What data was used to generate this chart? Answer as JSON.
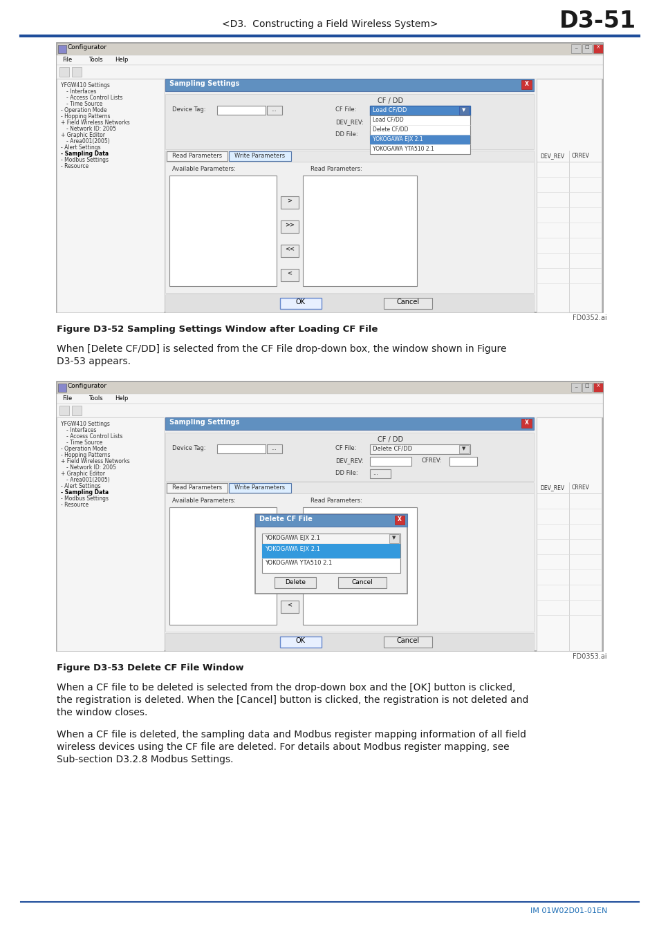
{
  "page_label": "D3-51",
  "header_text": "<D3.  Constructing a Field Wireless System>",
  "header_line_color": "#1e4d9b",
  "bg_color": "#ffffff",
  "footer_text": "IM 01W02D01-01EN",
  "figure1_caption": "Figure D3-52 Sampling Settings Window after Loading CF File",
  "figure1_ref": "FD0352.ai",
  "figure2_caption": "Figure D3-53 Delete CF File Window",
  "figure2_ref": "FD0353.ai",
  "para1": "When [Delete CF/DD] is selected from the CF File drop-down box, the window shown in Figure\nD3-53 appears.",
  "para2": "When a CF file to be deleted is selected from the drop-down box and the [OK] button is clicked,\nthe registration is deleted. When the [Cancel] button is clicked, the registration is not deleted and\nthe window closes.",
  "para3": "When a CF file is deleted, the sampling data and Modbus register mapping information of all field\nwireless devices using the CF file are deleted. For details about Modbus register mapping, see\nSub-section D3.2.8 Modbus Settings.",
  "text_dark": "#1a1a1a",
  "blue_line": "#1e4d9b",
  "footer_blue": "#1e6eb5"
}
